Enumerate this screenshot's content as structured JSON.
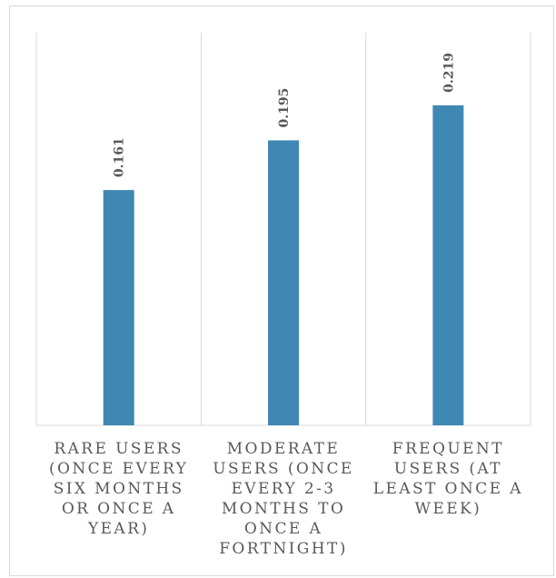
{
  "chart_data": {
    "type": "bar",
    "categories": [
      "RARE USERS (ONCE EVERY SIX MONTHS OR ONCE A YEAR)",
      "MODERATE USERS (ONCE EVERY 2-3 MONTHS TO ONCE A FORTNIGHT)",
      "FREQUENT USERS (AT LEAST ONCE A WEEK)"
    ],
    "values": [
      0.161,
      0.195,
      0.219
    ],
    "data_labels": [
      "0.161",
      "0.195",
      "0.219"
    ],
    "title": "",
    "xlabel": "",
    "ylabel": "",
    "ylim": [
      0,
      0.25
    ],
    "grid": "vertical category separators",
    "legend": "none",
    "bar_color": "#3f88b4"
  }
}
